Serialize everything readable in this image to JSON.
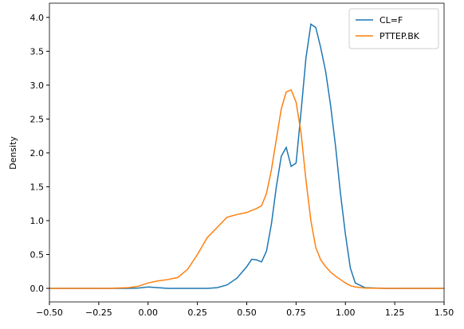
{
  "chart_data": {
    "type": "line",
    "y_label": "Density",
    "x": [
      -0.5,
      -0.4,
      -0.3,
      -0.2,
      -0.1,
      -0.05,
      0,
      0.05,
      0.1,
      0.15,
      0.2,
      0.25,
      0.3,
      0.35,
      0.4,
      0.45,
      0.5,
      0.525,
      0.55,
      0.575,
      0.6,
      0.625,
      0.65,
      0.675,
      0.7,
      0.725,
      0.75,
      0.775,
      0.8,
      0.825,
      0.85,
      0.875,
      0.9,
      0.925,
      0.95,
      0.975,
      1.0,
      1.025,
      1.05,
      1.1,
      1.2,
      1.3,
      1.4,
      1.5
    ],
    "series": [
      {
        "name": "CL=F",
        "color": "#1f77b4",
        "values": [
          0,
          0,
          0,
          0,
          0,
          0.005,
          0.02,
          0.01,
          0,
          0,
          0,
          0,
          0,
          0.01,
          0.05,
          0.15,
          0.32,
          0.43,
          0.42,
          0.39,
          0.55,
          0.95,
          1.5,
          1.95,
          2.08,
          1.8,
          1.85,
          2.6,
          3.4,
          3.9,
          3.85,
          3.55,
          3.2,
          2.7,
          2.1,
          1.4,
          0.8,
          0.3,
          0.08,
          0.01,
          0,
          0,
          0,
          0
        ]
      },
      {
        "name": "PTTEP.BK",
        "color": "#ff7f0e",
        "values": [
          0,
          0,
          0,
          0,
          0.01,
          0.03,
          0.08,
          0.11,
          0.13,
          0.16,
          0.28,
          0.5,
          0.75,
          0.9,
          1.05,
          1.09,
          1.12,
          1.15,
          1.18,
          1.22,
          1.4,
          1.75,
          2.2,
          2.65,
          2.9,
          2.93,
          2.75,
          2.3,
          1.6,
          1.0,
          0.6,
          0.42,
          0.32,
          0.24,
          0.18,
          0.13,
          0.08,
          0.04,
          0.02,
          0.005,
          0,
          0,
          0,
          0
        ]
      }
    ],
    "xlim": [
      -0.5,
      1.5
    ],
    "ylim": [
      -0.2,
      4.21
    ],
    "xticks": [
      {
        "value": -0.5,
        "label": "−0.50"
      },
      {
        "value": -0.25,
        "label": "−0.25"
      },
      {
        "value": 0,
        "label": "0.00"
      },
      0.25,
      {
        "value": 0.5,
        "label": "0.50"
      },
      0.75,
      {
        "value": 1,
        "label": "1.00"
      },
      1.25,
      {
        "value": 1.5,
        "label": "1.50"
      }
    ],
    "yticks": [
      {
        "value": 0,
        "label": "0.0"
      },
      0.5,
      {
        "value": 1,
        "label": "1.0"
      },
      1.5,
      {
        "value": 2,
        "label": "2.0"
      },
      2.5,
      {
        "value": 3,
        "label": "3.0"
      },
      3.5,
      {
        "value": 4,
        "label": "4.0"
      }
    ],
    "legend": "upper right"
  }
}
